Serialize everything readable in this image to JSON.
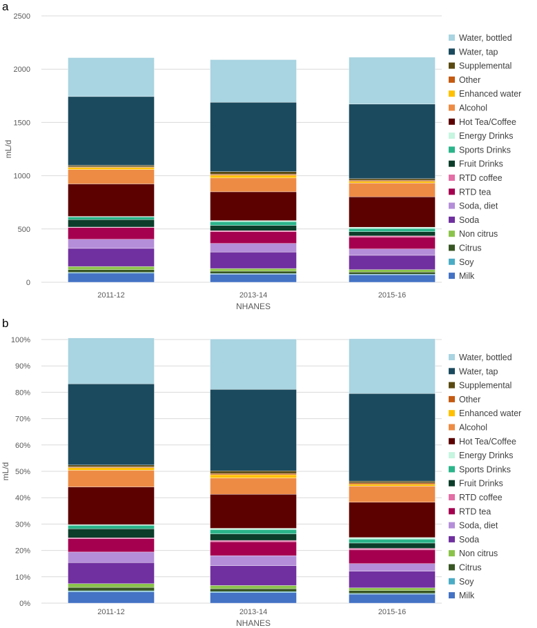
{
  "chart_data": [
    {
      "panel": "a",
      "type": "bar",
      "stacked": true,
      "categories": [
        "2011-12",
        "2013-14",
        "2015-16"
      ],
      "xlabel": "NHANES",
      "ylabel": "mL/d",
      "ylim": [
        0,
        2500
      ],
      "yticks": [
        0,
        500,
        1000,
        1500,
        2000,
        2500
      ],
      "ytick_labels": [
        "0",
        "500",
        "1000",
        "1500",
        "2000",
        "2500"
      ],
      "grid": true,
      "legend": "right",
      "series": [
        {
          "name": "Milk",
          "color": "#4472c4",
          "values": [
            85,
            75,
            70
          ]
        },
        {
          "name": "Soy",
          "color": "#4bacc6",
          "values": [
            8,
            7,
            6
          ]
        },
        {
          "name": "Citrus",
          "color": "#375623",
          "values": [
            25,
            22,
            20
          ]
        },
        {
          "name": "Non citrus",
          "color": "#8bc34a",
          "values": [
            30,
            25,
            22
          ]
        },
        {
          "name": "Soda",
          "color": "#7030a0",
          "values": [
            170,
            155,
            135
          ]
        },
        {
          "name": "Soda, diet",
          "color": "#b58ed9",
          "values": [
            85,
            80,
            60
          ]
        },
        {
          "name": "RTD tea",
          "color": "#a50050",
          "values": [
            110,
            110,
            110
          ]
        },
        {
          "name": "RTD coffee",
          "color": "#e46ea6",
          "values": [
            5,
            10,
            12
          ]
        },
        {
          "name": "Fruit Drinks",
          "color": "#0b3d2a",
          "values": [
            70,
            50,
            40
          ]
        },
        {
          "name": "Sports Drinks",
          "color": "#2bb58a",
          "values": [
            25,
            35,
            30
          ]
        },
        {
          "name": "Energy Drinks",
          "color": "#c6f5e0",
          "values": [
            5,
            10,
            12
          ]
        },
        {
          "name": "Hot Tea/Coffee",
          "color": "#5c0000",
          "values": [
            305,
            270,
            285
          ]
        },
        {
          "name": "Alcohol",
          "color": "#ed8b45",
          "values": [
            135,
            130,
            130
          ]
        },
        {
          "name": "Enhanced water",
          "color": "#ffc000",
          "values": [
            20,
            25,
            15
          ]
        },
        {
          "name": "Other",
          "color": "#c55a11",
          "values": [
            5,
            10,
            10
          ]
        },
        {
          "name": "Supplemental",
          "color": "#5a4a12",
          "values": [
            15,
            25,
            15
          ]
        },
        {
          "name": "Water, tap",
          "color": "#1b4a5e",
          "values": [
            645,
            650,
            700
          ]
        },
        {
          "name": "Water, bottled",
          "color": "#a9d4e1",
          "values": [
            365,
            400,
            440
          ]
        }
      ]
    },
    {
      "panel": "b",
      "type": "bar",
      "stacked": true,
      "normalized": true,
      "categories": [
        "2011-12",
        "2013-14",
        "2015-16"
      ],
      "xlabel": "NHANES",
      "ylabel": "mL/d",
      "ylim": [
        0,
        100
      ],
      "yticks": [
        0,
        10,
        20,
        30,
        40,
        50,
        60,
        70,
        80,
        90,
        100
      ],
      "ytick_labels": [
        "0%",
        "10%",
        "20%",
        "30%",
        "40%",
        "50%",
        "60%",
        "70%",
        "80%",
        "90%",
        "100%"
      ],
      "grid": true,
      "legend": "right",
      "series": [
        {
          "name": "Milk",
          "color": "#4472c4",
          "values": [
            4.3,
            4.0,
            3.4
          ]
        },
        {
          "name": "Soy",
          "color": "#4bacc6",
          "values": [
            0.4,
            0.4,
            0.3
          ]
        },
        {
          "name": "Citrus",
          "color": "#375623",
          "values": [
            1.3,
            1.1,
            1.1
          ]
        },
        {
          "name": "Non citrus",
          "color": "#8bc34a",
          "values": [
            1.4,
            1.2,
            1.0
          ]
        },
        {
          "name": "Soda",
          "color": "#7030a0",
          "values": [
            8.0,
            7.5,
            6.3
          ]
        },
        {
          "name": "Soda, diet",
          "color": "#b58ed9",
          "values": [
            4.0,
            3.8,
            2.9
          ]
        },
        {
          "name": "RTD tea",
          "color": "#a50050",
          "values": [
            5.1,
            5.3,
            5.2
          ]
        },
        {
          "name": "RTD coffee",
          "color": "#e46ea6",
          "values": [
            0.3,
            0.5,
            0.6
          ]
        },
        {
          "name": "Fruit Drinks",
          "color": "#0b3d2a",
          "values": [
            3.4,
            2.5,
            2.0
          ]
        },
        {
          "name": "Sports Drinks",
          "color": "#2bb58a",
          "values": [
            1.3,
            1.6,
            1.5
          ]
        },
        {
          "name": "Energy Drinks",
          "color": "#c6f5e0",
          "values": [
            0.3,
            0.5,
            0.6
          ]
        },
        {
          "name": "Hot Tea/Coffee",
          "color": "#5c0000",
          "values": [
            14.3,
            12.9,
            13.4
          ]
        },
        {
          "name": "Alcohol",
          "color": "#ed8b45",
          "values": [
            6.3,
            6.2,
            6.1
          ]
        },
        {
          "name": "Enhanced water",
          "color": "#ffc000",
          "values": [
            1.0,
            1.2,
            0.7
          ]
        },
        {
          "name": "Other",
          "color": "#c55a11",
          "values": [
            0.3,
            0.5,
            0.5
          ]
        },
        {
          "name": "Supplemental",
          "color": "#5a4a12",
          "values": [
            0.7,
            1.0,
            0.7
          ]
        },
        {
          "name": "Water, tap",
          "color": "#1b4a5e",
          "values": [
            30.8,
            30.9,
            33.2
          ]
        },
        {
          "name": "Water, bottled",
          "color": "#a9d4e1",
          "values": [
            17.4,
            19.1,
            20.8
          ]
        }
      ]
    }
  ]
}
